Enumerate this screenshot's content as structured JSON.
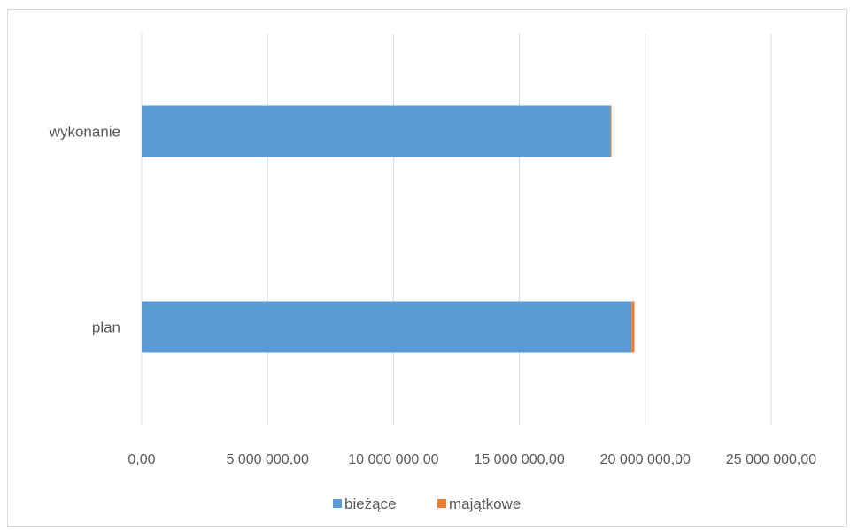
{
  "chart_data": {
    "type": "bar",
    "orientation": "horizontal",
    "stacked": true,
    "categories": [
      "plan",
      "wykonanie"
    ],
    "series": [
      {
        "name": "bieżące",
        "values": [
          19450000,
          18620000
        ],
        "color": "#5b9bd5"
      },
      {
        "name": "majątkowe",
        "values": [
          120000,
          30000
        ],
        "color": "#ed7d31"
      }
    ],
    "xlim": [
      0,
      25000000
    ],
    "xticks": [
      0,
      5000000,
      10000000,
      15000000,
      20000000,
      25000000
    ],
    "xtick_labels": [
      "0,00",
      "5 000 000,00",
      "10 000 000,00",
      "15 000 000,00",
      "20 000 000,00",
      "25 000 000,00"
    ],
    "grid": true,
    "legend_position": "bottom",
    "title": "",
    "xlabel": "",
    "ylabel": ""
  }
}
